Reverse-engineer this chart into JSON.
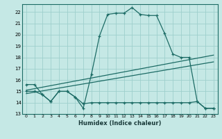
{
  "xlabel": "Humidex (Indice chaleur)",
  "background_color": "#c5e8e5",
  "grid_color": "#9ecfcc",
  "line_color": "#1c6b65",
  "xlim": [
    -0.5,
    23.5
  ],
  "ylim": [
    13,
    22.7
  ],
  "yticks": [
    13,
    14,
    15,
    16,
    17,
    18,
    19,
    20,
    21,
    22
  ],
  "xticks": [
    0,
    1,
    2,
    3,
    4,
    5,
    6,
    7,
    8,
    9,
    10,
    11,
    12,
    13,
    14,
    15,
    16,
    17,
    18,
    19,
    20,
    21,
    22,
    23
  ],
  "series1_x": [
    0,
    1,
    2,
    3,
    4,
    5,
    6,
    7,
    8,
    9,
    10,
    11,
    12,
    13,
    14,
    15,
    16,
    17,
    18,
    19,
    20,
    21,
    22,
    23
  ],
  "series1_y": [
    15.6,
    15.6,
    14.7,
    14.1,
    15.0,
    15.0,
    14.5,
    13.5,
    16.5,
    19.9,
    21.8,
    21.9,
    21.9,
    22.4,
    21.8,
    21.7,
    21.7,
    20.1,
    18.3,
    18.0,
    18.0,
    14.1,
    13.5,
    13.5
  ],
  "series2_x": [
    0,
    1,
    2,
    3,
    4,
    5,
    6,
    7,
    8,
    9,
    10,
    11,
    12,
    13,
    14,
    15,
    16,
    17,
    18,
    19,
    20,
    21,
    22,
    23
  ],
  "series2_y": [
    15.0,
    15.0,
    14.7,
    14.1,
    15.0,
    15.0,
    14.5,
    13.9,
    14.0,
    14.0,
    14.0,
    14.0,
    14.0,
    14.0,
    14.0,
    14.0,
    14.0,
    14.0,
    14.0,
    14.0,
    14.0,
    14.1,
    13.5,
    13.5
  ],
  "series3_x": [
    0,
    23
  ],
  "series3_y": [
    15.1,
    18.2
  ],
  "series4_x": [
    0,
    23
  ],
  "series4_y": [
    14.8,
    17.6
  ]
}
